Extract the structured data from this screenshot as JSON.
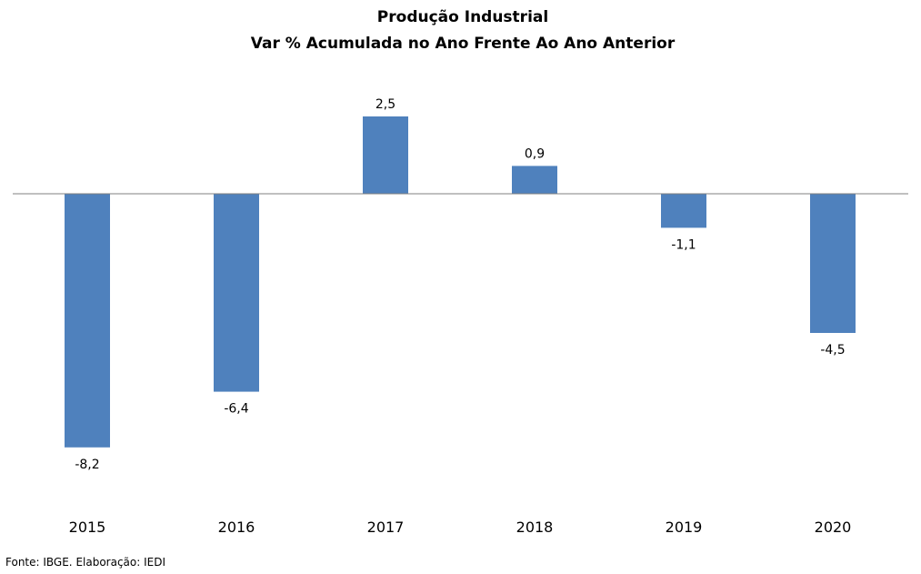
{
  "chart_data": {
    "type": "bar",
    "title": "Produção Industrial",
    "subtitle": "Var % Acumulada no Ano Frente Ao Ano Anterior",
    "categories": [
      "2015",
      "2016",
      "2017",
      "2018",
      "2019",
      "2020"
    ],
    "values": [
      -8.2,
      -6.4,
      2.5,
      0.9,
      -1.1,
      -4.5
    ],
    "data_labels": [
      "-8,2",
      "-6,4",
      "2,5",
      "0,9",
      "-1,1",
      "-4,5"
    ],
    "xlabel": "",
    "ylabel": "",
    "ylim": [
      -8.2,
      2.5
    ],
    "grid": false,
    "legend": "none",
    "bar_color": "#4f81bd",
    "axis_color": "#808080"
  },
  "source": "Fonte: IBGE. Elaboração: IEDI"
}
